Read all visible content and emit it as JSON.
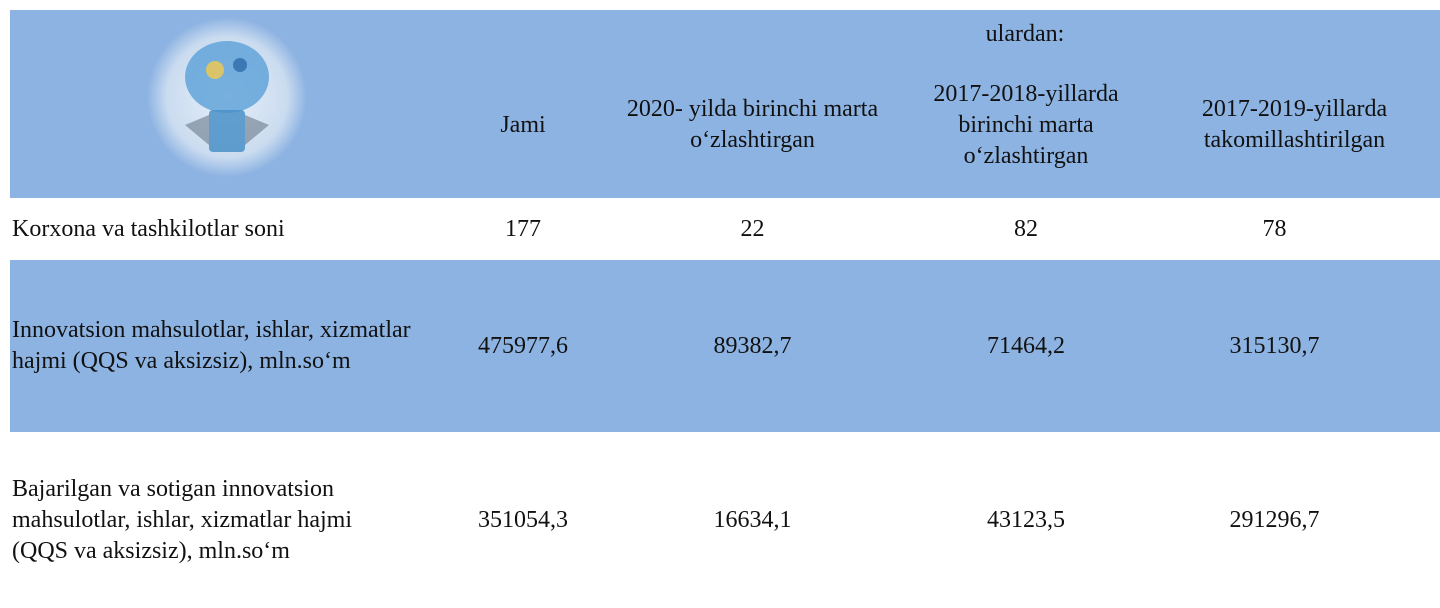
{
  "header": {
    "group_label": "ulardan:",
    "columns": [
      "Jami",
      "2020- yilda birinchi marta o‘zlashtirgan",
      "2017-2018-yillarda birinchi marta o‘zlashtirgan",
      "2017-2019-yillarda takomillashtirilgan"
    ]
  },
  "table": {
    "rows": [
      {
        "label": "Korxona va tashkilotlar soni",
        "cells": [
          "177",
          "22",
          "82",
          "78"
        ]
      },
      {
        "label": "Innovatsion mahsulotlar, ishlar, xizmatlar hajmi  (QQS va aksizsiz), mln.so‘m",
        "cells": [
          "475977,6",
          "89382,7",
          "71464,2",
          "315130,7"
        ]
      },
      {
        "label": "Bajarilgan va sotigan innovatsion mahsulotlar, ishlar, xizmatlar hajmi  (QQS va aksizsiz), mln.so‘m",
        "cells": [
          "351054,3",
          "16634,1",
          "43123,5",
          "291296,7"
        ]
      }
    ]
  }
}
